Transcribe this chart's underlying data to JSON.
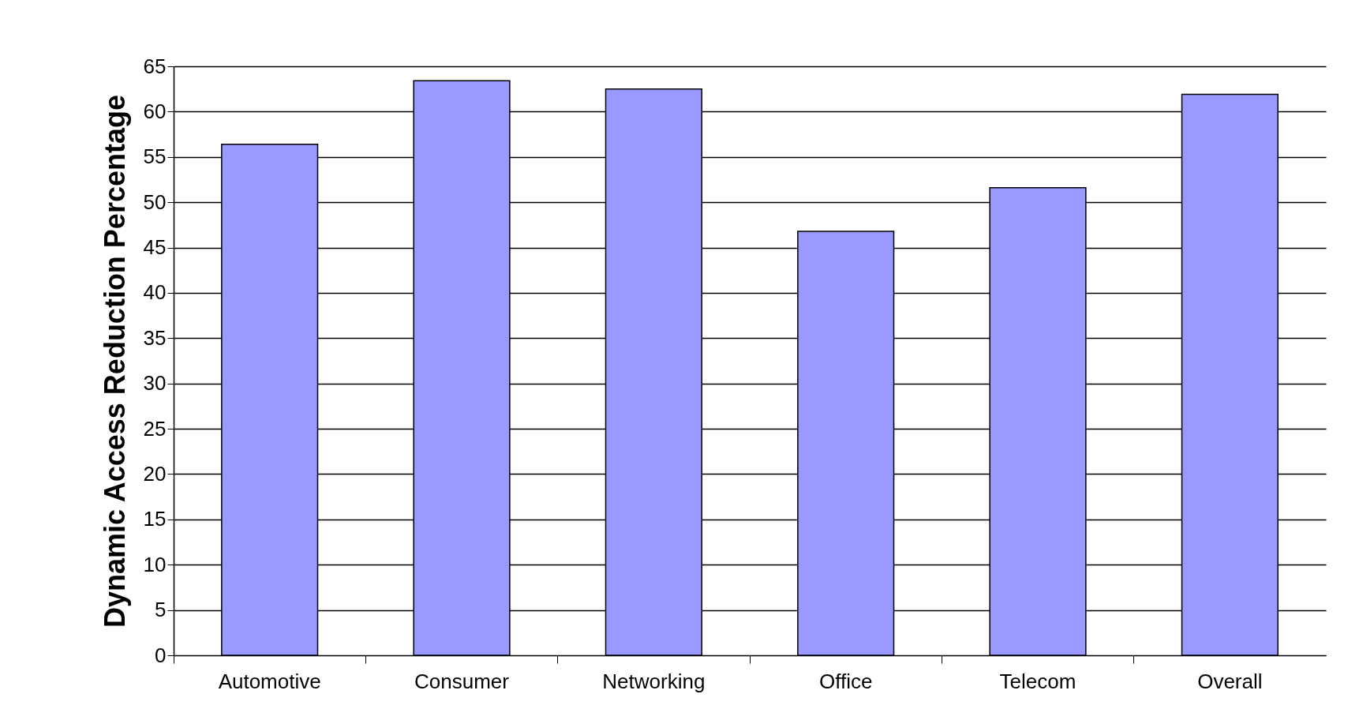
{
  "chart_data": {
    "type": "bar",
    "ylabel": "Dynamic Access Reduction Percentage",
    "categories": [
      "Automotive",
      "Consumer",
      "Networking",
      "Office",
      "Telecom",
      "Overall"
    ],
    "values": [
      56.4,
      63.4,
      62.5,
      46.8,
      51.6,
      61.9
    ],
    "color": "#9999ff",
    "ylim": [
      0,
      65
    ],
    "yticks": [
      0,
      5,
      10,
      15,
      20,
      25,
      30,
      35,
      40,
      45,
      50,
      55,
      60,
      65
    ],
    "grid": "y"
  }
}
